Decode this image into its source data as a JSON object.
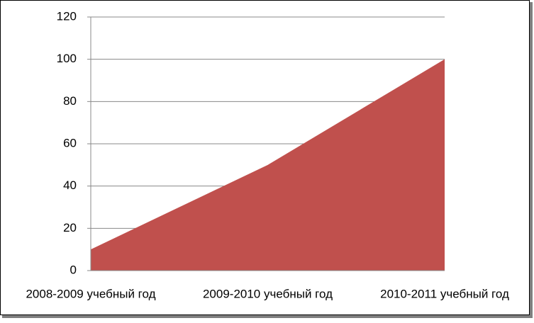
{
  "chart_data": {
    "type": "area",
    "categories": [
      "2008-2009 учебный год",
      "2009-2010 учебный год",
      "2010-2011 учебный год"
    ],
    "values": [
      10,
      50,
      100
    ],
    "color": "#c0504d",
    "ylim": [
      0,
      120
    ],
    "yticks": [
      0,
      20,
      40,
      60,
      80,
      100,
      120
    ],
    "grid": true
  }
}
